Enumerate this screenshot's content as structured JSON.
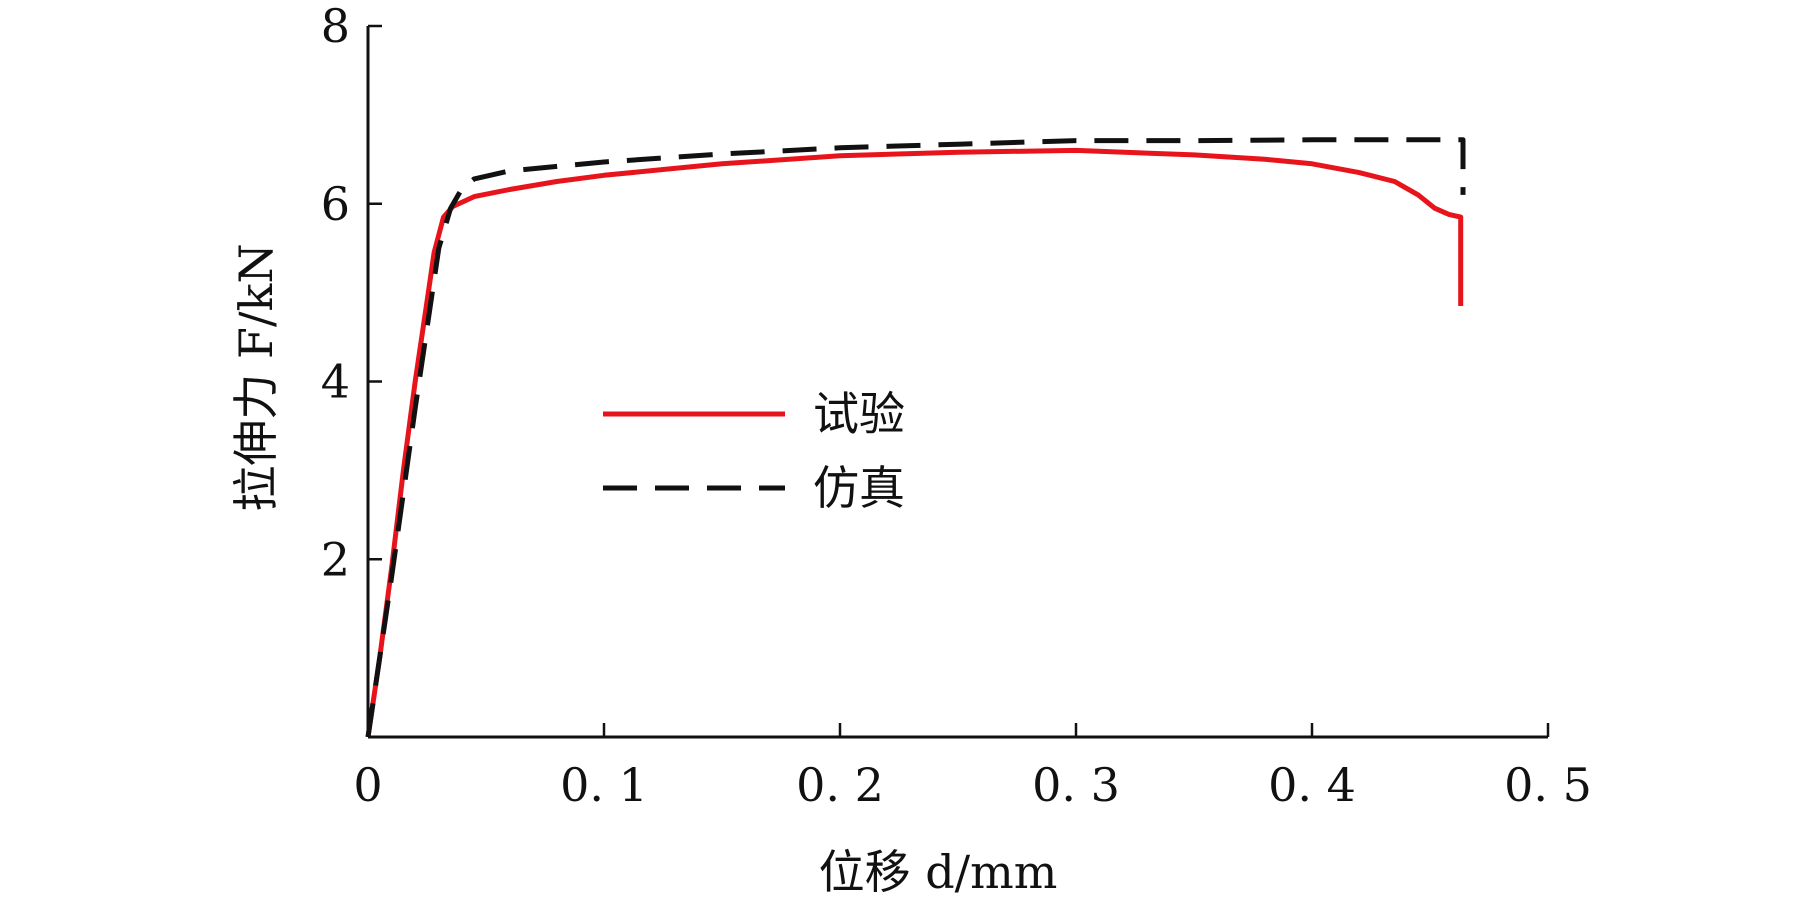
{
  "chart_data": {
    "type": "line",
    "xlabel": "位移 d/mm",
    "ylabel": "拉伸力 F/kN",
    "xlim": [
      0,
      0.5
    ],
    "ylim": [
      0,
      8
    ],
    "x_ticks": [
      0,
      0.1,
      0.2,
      0.3,
      0.4,
      0.5
    ],
    "x_tick_labels": [
      "0",
      "0. 1",
      "0. 2",
      "0. 3",
      "0. 4",
      "0. 5"
    ],
    "y_ticks": [
      2,
      4,
      6,
      8
    ],
    "y_tick_labels": [
      "2",
      "4",
      "6",
      "8"
    ],
    "grid": false,
    "legend_position": "center-left",
    "series": [
      {
        "name": "试验",
        "color": "#e8141c",
        "dash": "solid",
        "x": [
          0,
          0.005,
          0.01,
          0.015,
          0.02,
          0.025,
          0.028,
          0.032,
          0.036,
          0.045,
          0.06,
          0.08,
          0.1,
          0.15,
          0.2,
          0.25,
          0.3,
          0.35,
          0.38,
          0.4,
          0.42,
          0.435,
          0.445,
          0.452,
          0.458,
          0.463,
          0.463
        ],
        "y": [
          0,
          0.9,
          1.9,
          3.0,
          4.0,
          4.9,
          5.45,
          5.85,
          5.97,
          6.08,
          6.16,
          6.25,
          6.32,
          6.45,
          6.54,
          6.58,
          6.6,
          6.55,
          6.5,
          6.45,
          6.35,
          6.25,
          6.1,
          5.95,
          5.88,
          5.85,
          4.85
        ]
      },
      {
        "name": "仿真",
        "color": "#111111",
        "dash": "dashed",
        "x": [
          0,
          0.01,
          0.02,
          0.03,
          0.035,
          0.04,
          0.045,
          0.06,
          0.1,
          0.15,
          0.2,
          0.25,
          0.3,
          0.35,
          0.4,
          0.45,
          0.464,
          0.464
        ],
        "y": [
          0,
          1.8,
          3.7,
          5.5,
          5.95,
          6.18,
          6.28,
          6.37,
          6.47,
          6.56,
          6.63,
          6.67,
          6.71,
          6.71,
          6.72,
          6.72,
          6.72,
          6.1
        ]
      }
    ]
  }
}
